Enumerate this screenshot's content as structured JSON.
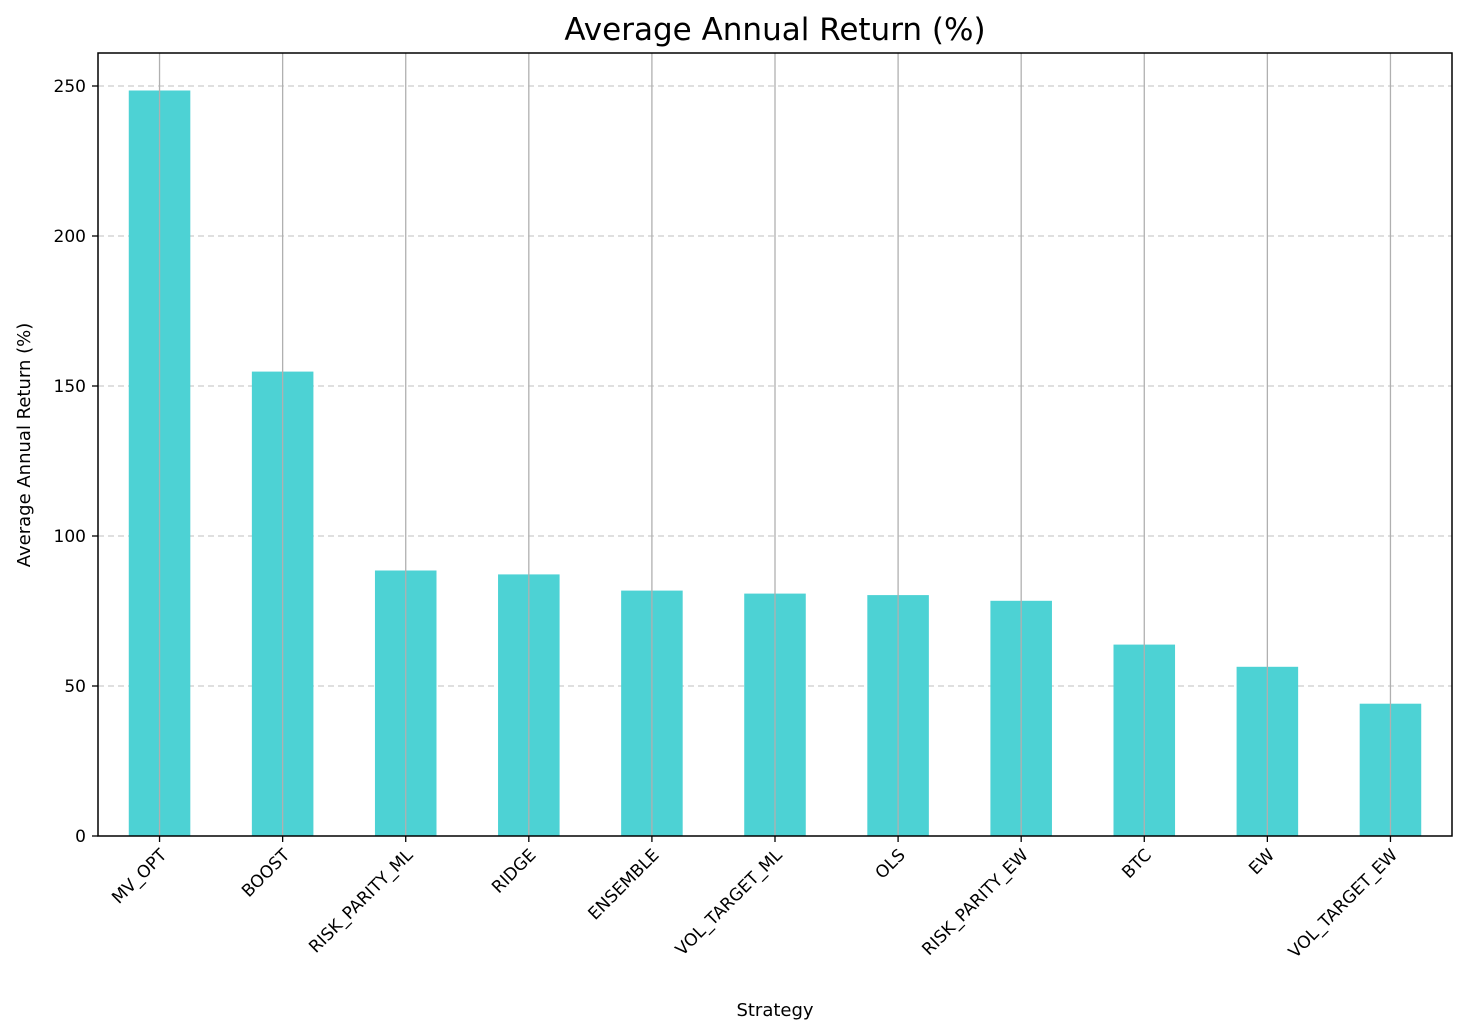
{
  "chart_data": {
    "type": "bar",
    "title": "Average Annual Return (%)",
    "xlabel": "Strategy",
    "ylabel": "Average Annual Return (%)",
    "categories": [
      "MV_OPT",
      "BOOST",
      "RISK_PARITY_ML",
      "RIDGE",
      "ENSEMBLE",
      "VOL_TARGET_ML",
      "OLS",
      "RISK_PARITY_EW",
      "BTC",
      "EW",
      "VOL_TARGET_EW"
    ],
    "values": [
      248.5,
      154.8,
      88.5,
      87.2,
      81.8,
      80.8,
      80.3,
      78.4,
      63.8,
      56.4,
      44.1
    ],
    "ylim": [
      0,
      261
    ],
    "yticks": [
      0,
      50,
      100,
      150,
      200,
      250
    ],
    "bar_color": "#4dd2d4",
    "grid": {
      "y": "dashed",
      "x": "solid"
    },
    "grid_color": "#b0b0b0"
  }
}
